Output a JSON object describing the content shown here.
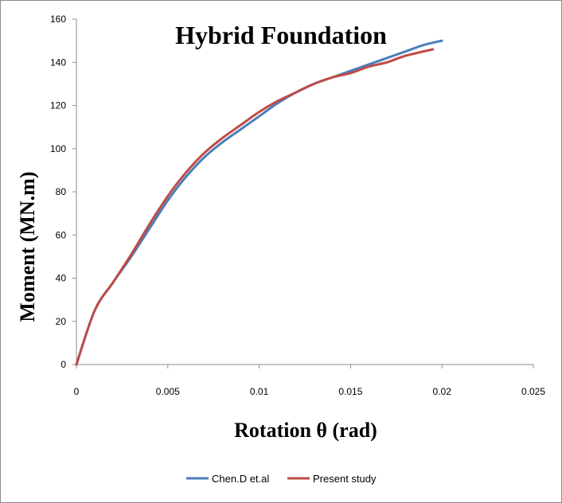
{
  "chart_data": {
    "type": "line",
    "title": "Hybrid Foundation",
    "xlabel": "Rotation θ (rad)",
    "ylabel": "Moment (MN.m)",
    "xlim": [
      0,
      0.025
    ],
    "ylim": [
      0,
      160
    ],
    "x_ticks": [
      "0",
      "0.005",
      "0.01",
      "0.015",
      "0.02",
      "0.025"
    ],
    "y_ticks": [
      "0",
      "20",
      "40",
      "60",
      "80",
      "100",
      "120",
      "140",
      "160"
    ],
    "grid": false,
    "legend_position": "bottom",
    "series": [
      {
        "name": "Chen.D et.al",
        "color": "#4a7ebb",
        "x": [
          0,
          0.001,
          0.002,
          0.003,
          0.004,
          0.005,
          0.006,
          0.007,
          0.008,
          0.009,
          0.01,
          0.011,
          0.012,
          0.013,
          0.014,
          0.015,
          0.016,
          0.017,
          0.018,
          0.019,
          0.02
        ],
        "y": [
          0,
          25,
          38,
          50,
          63,
          76,
          87,
          96,
          103,
          109,
          115,
          121,
          126,
          130,
          133,
          136,
          139,
          142,
          145,
          148,
          150
        ]
      },
      {
        "name": "Present study",
        "color": "#be4b48",
        "x": [
          0,
          0.001,
          0.002,
          0.003,
          0.004,
          0.005,
          0.006,
          0.007,
          0.008,
          0.009,
          0.01,
          0.011,
          0.012,
          0.013,
          0.014,
          0.015,
          0.016,
          0.017,
          0.018,
          0.0195
        ],
        "y": [
          0,
          25,
          38,
          51,
          65,
          78,
          89,
          98,
          105,
          111,
          117,
          122,
          126,
          130,
          133,
          135,
          138,
          140,
          143,
          146
        ]
      }
    ]
  }
}
